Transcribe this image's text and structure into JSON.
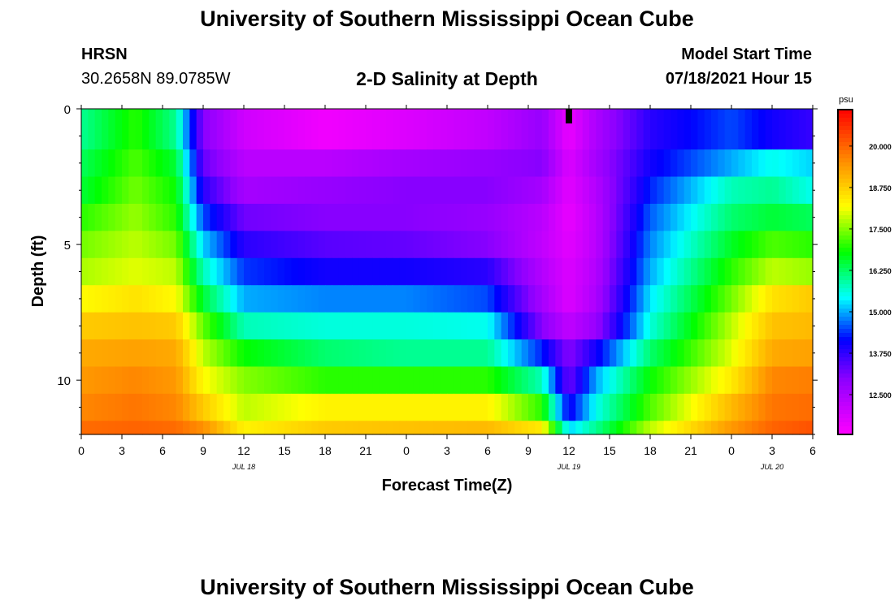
{
  "header": {
    "title": "University of Southern Mississippi Ocean Cube",
    "footer_title": "University of Southern Mississippi Ocean Cube",
    "station": "HRSN",
    "coords": "30.2658N  89.0785W",
    "plot_title": "2-D Salinity at Depth",
    "start_label": "Model Start Time",
    "start_value": "07/18/2021 Hour 15"
  },
  "chart_data": {
    "type": "heatmap",
    "xlabel": "Forecast Time(Z)",
    "ylabel": "Depth (ft)",
    "x_tick_labels": [
      "0",
      "3",
      "6",
      "9",
      "12",
      "15",
      "18",
      "21",
      "0",
      "3",
      "6",
      "9",
      "12",
      "15",
      "18",
      "21",
      "0",
      "3",
      "6"
    ],
    "date_labels": [
      {
        "label": "JUL 18",
        "at_tick": 4
      },
      {
        "label": "JUL 19",
        "at_tick": 12
      },
      {
        "label": "JUL 20",
        "at_tick": 17
      }
    ],
    "y_ticks": [
      0,
      5,
      10
    ],
    "ylim": [
      0,
      12
    ],
    "hours_range": [
      0,
      54
    ],
    "current_time_hour": 36,
    "colorbar": {
      "unit": "psu",
      "ticks": [
        "12.500",
        "13.750",
        "15.000",
        "16.250",
        "17.500",
        "18.750",
        "20.000"
      ],
      "range": [
        11.3,
        21.1
      ]
    },
    "salinity_keypoints": {
      "hours": [
        0,
        4,
        7,
        9,
        12,
        18,
        24,
        30,
        34,
        36,
        38,
        42,
        48,
        51,
        54
      ],
      "depth_levels_ft": [
        0,
        1.5,
        2.5,
        3.5,
        4.5,
        5.5,
        6.5,
        7.5,
        8.5,
        9.5,
        10.5,
        11.5
      ],
      "values": [
        [
          16.0,
          17.0,
          16.0,
          13.0,
          12.0,
          11.5,
          11.8,
          12.2,
          12.8,
          11.6,
          12.5,
          13.8,
          14.5,
          14.0,
          13.7
        ],
        [
          16.3,
          17.2,
          16.5,
          13.3,
          12.3,
          12.3,
          12.6,
          12.8,
          13.0,
          11.8,
          12.6,
          14.0,
          15.0,
          15.5,
          15.2
        ],
        [
          16.5,
          17.4,
          16.8,
          13.8,
          12.6,
          12.8,
          13.0,
          13.0,
          12.6,
          11.7,
          12.4,
          14.3,
          15.8,
          16.0,
          15.5
        ],
        [
          17.0,
          17.6,
          17.0,
          14.5,
          13.2,
          13.0,
          13.0,
          12.8,
          12.3,
          11.6,
          12.3,
          14.6,
          16.2,
          16.5,
          16.3
        ],
        [
          17.4,
          17.8,
          17.4,
          15.2,
          13.8,
          13.4,
          13.3,
          13.0,
          12.2,
          11.7,
          12.3,
          14.8,
          16.6,
          17.2,
          17.0
        ],
        [
          17.7,
          18.0,
          17.8,
          15.8,
          14.4,
          14.0,
          14.0,
          13.8,
          12.4,
          11.8,
          12.4,
          15.0,
          17.0,
          17.8,
          17.6
        ],
        [
          18.2,
          18.5,
          18.2,
          16.5,
          15.0,
          14.8,
          14.8,
          14.5,
          12.6,
          11.8,
          12.5,
          15.3,
          17.4,
          18.5,
          18.8
        ],
        [
          18.8,
          18.9,
          18.8,
          17.3,
          15.8,
          15.6,
          15.6,
          15.5,
          13.0,
          12.2,
          12.8,
          15.6,
          17.8,
          18.9,
          19.0
        ],
        [
          19.2,
          19.3,
          19.2,
          17.8,
          16.8,
          16.2,
          16.0,
          16.0,
          14.3,
          13.0,
          14.0,
          16.2,
          18.0,
          19.2,
          19.3
        ],
        [
          19.4,
          19.6,
          19.4,
          18.2,
          17.5,
          17.0,
          17.0,
          17.0,
          15.8,
          13.2,
          15.0,
          16.8,
          18.4,
          19.6,
          19.7
        ],
        [
          19.6,
          19.8,
          19.6,
          18.8,
          17.8,
          18.3,
          18.3,
          18.3,
          17.0,
          14.0,
          15.5,
          17.2,
          19.0,
          19.8,
          19.9
        ],
        [
          19.9,
          20.0,
          19.9,
          19.5,
          18.3,
          18.8,
          18.9,
          19.0,
          18.4,
          15.2,
          16.0,
          17.8,
          19.4,
          20.0,
          20.2
        ]
      ]
    }
  }
}
